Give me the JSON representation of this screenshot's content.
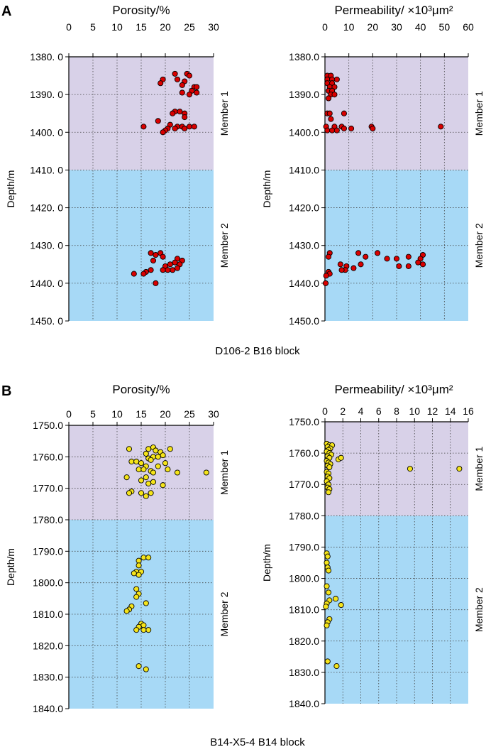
{
  "chart_data": [
    {
      "type": "scatter",
      "panel": "A",
      "title": "Porosity/%",
      "ylabel": "Depth/m",
      "xlim": [
        0,
        30
      ],
      "xticks": [
        "0",
        "5",
        "10",
        "15",
        "20",
        "25",
        "30"
      ],
      "ylim": [
        1380,
        1450
      ],
      "yticks": [
        "1380. 0",
        "1390. 0",
        "1400. 0",
        "1410. 0",
        "1420. 0",
        "1430. 0",
        "1440. 0",
        "1450. 0"
      ],
      "zones": [
        {
          "name": "Member 1",
          "from": 1380,
          "to": 1410,
          "color": "#d8d1e8"
        },
        {
          "name": "Member 2",
          "from": 1410,
          "to": 1450,
          "color": "#a7d9f6"
        }
      ],
      "marker_color": "#d90000",
      "points": [
        [
          22,
          1384.5
        ],
        [
          24.5,
          1384.5
        ],
        [
          25,
          1385
        ],
        [
          19.5,
          1386
        ],
        [
          22.5,
          1386
        ],
        [
          24,
          1386.5
        ],
        [
          19,
          1387
        ],
        [
          23.5,
          1387.5
        ],
        [
          26,
          1388
        ],
        [
          26.5,
          1388
        ],
        [
          25.5,
          1389
        ],
        [
          23.5,
          1389.5
        ],
        [
          26.5,
          1389.5
        ],
        [
          25,
          1390
        ],
        [
          18.5,
          1397
        ],
        [
          22,
          1394.5
        ],
        [
          23,
          1394.5
        ],
        [
          24,
          1395
        ],
        [
          21.5,
          1395
        ],
        [
          24,
          1396
        ],
        [
          21,
          1398
        ],
        [
          22.5,
          1398.5
        ],
        [
          23.5,
          1398.5
        ],
        [
          25,
          1398.5
        ],
        [
          26,
          1398.5
        ],
        [
          15.5,
          1398.5
        ],
        [
          20.5,
          1399
        ],
        [
          22,
          1399
        ],
        [
          24,
          1399
        ],
        [
          20,
          1399.5
        ],
        [
          19.5,
          1400
        ],
        [
          17,
          1432
        ],
        [
          18,
          1432.5
        ],
        [
          19,
          1432
        ],
        [
          19.5,
          1433
        ],
        [
          22.5,
          1433.5
        ],
        [
          23.5,
          1434
        ],
        [
          17.5,
          1434
        ],
        [
          22,
          1434.5
        ],
        [
          23,
          1435
        ],
        [
          21,
          1435
        ],
        [
          20,
          1435.5
        ],
        [
          22.5,
          1436
        ],
        [
          21.5,
          1436.5
        ],
        [
          20.5,
          1436.5
        ],
        [
          19.5,
          1436.5
        ],
        [
          17,
          1436.5
        ],
        [
          16,
          1437
        ],
        [
          15.5,
          1437.5
        ],
        [
          13.5,
          1437.5
        ],
        [
          18,
          1440
        ]
      ]
    },
    {
      "type": "scatter",
      "panel": "A",
      "title": "Permeability/ ×10³μm²",
      "ylabel": "Depth/m",
      "xlim": [
        0,
        60
      ],
      "xticks": [
        "0",
        "10",
        "20",
        "30",
        "40",
        "50",
        "60"
      ],
      "ylim": [
        1380,
        1450
      ],
      "yticks": [
        "1380.0",
        "1390.0",
        "1400.0",
        "1410.0",
        "1420.0",
        "1430.0",
        "1440.0",
        "1450.0"
      ],
      "zones": [
        {
          "name": "Member 1",
          "from": 1380,
          "to": 1410,
          "color": "#d8d1e8"
        },
        {
          "name": "Member 2",
          "from": 1410,
          "to": 1450,
          "color": "#a7d9f6"
        }
      ],
      "marker_color": "#d90000",
      "points": [
        [
          1,
          1385
        ],
        [
          2.5,
          1385
        ],
        [
          1,
          1386
        ],
        [
          3,
          1386
        ],
        [
          5,
          1386
        ],
        [
          1,
          1387
        ],
        [
          3,
          1387
        ],
        [
          2,
          1388
        ],
        [
          4,
          1388
        ],
        [
          1.5,
          1389
        ],
        [
          3,
          1389
        ],
        [
          2.5,
          1390
        ],
        [
          4,
          1390
        ],
        [
          1.5,
          1391
        ],
        [
          1,
          1395
        ],
        [
          2,
          1395
        ],
        [
          8,
          1395
        ],
        [
          2.5,
          1396.5
        ],
        [
          0.5,
          1398.5
        ],
        [
          4,
          1398.5
        ],
        [
          7,
          1398.5
        ],
        [
          19.5,
          1398.5
        ],
        [
          20,
          1399
        ],
        [
          48.5,
          1398.5
        ],
        [
          1,
          1399.5
        ],
        [
          3,
          1399.5
        ],
        [
          5,
          1399.5
        ],
        [
          8,
          1399
        ],
        [
          11,
          1399
        ],
        [
          2,
          1432
        ],
        [
          1.5,
          1433
        ],
        [
          14,
          1432
        ],
        [
          17,
          1433
        ],
        [
          22,
          1432
        ],
        [
          26,
          1433.5
        ],
        [
          30,
          1433.5
        ],
        [
          35,
          1433
        ],
        [
          41,
          1432.5
        ],
        [
          40,
          1433.5
        ],
        [
          39,
          1434.5
        ],
        [
          41,
          1435
        ],
        [
          35,
          1435.5
        ],
        [
          31,
          1435.5
        ],
        [
          6.5,
          1435
        ],
        [
          15,
          1435
        ],
        [
          9,
          1435.5
        ],
        [
          8.5,
          1436.5
        ],
        [
          7,
          1436.5
        ],
        [
          12,
          1436
        ],
        [
          1.5,
          1437
        ],
        [
          2,
          1437.5
        ],
        [
          0.5,
          1438
        ],
        [
          0.3,
          1440
        ]
      ]
    },
    {
      "type": "scatter",
      "panel": "B",
      "title": "Porosity/%",
      "ylabel": "Depth/m",
      "xlim": [
        0,
        30
      ],
      "xticks": [
        "0",
        "5",
        "10",
        "15",
        "20",
        "25",
        "30"
      ],
      "ylim": [
        1750,
        1840
      ],
      "yticks": [
        "1750.0",
        "1760.0",
        "1770.0",
        "1780.0",
        "1790.0",
        "1800.0",
        "1810.0",
        "1820.0",
        "1830.0",
        "1840.0"
      ],
      "zones": [
        {
          "name": "Member 1",
          "from": 1750,
          "to": 1780,
          "color": "#d8d1e8"
        },
        {
          "name": "Member 2",
          "from": 1780,
          "to": 1840,
          "color": "#a7d9f6"
        }
      ],
      "marker_color": "#f5e41a",
      "points": [
        [
          12.5,
          1757.5
        ],
        [
          16.5,
          1757.5
        ],
        [
          17.5,
          1757
        ],
        [
          18,
          1758
        ],
        [
          19,
          1758.5
        ],
        [
          21,
          1757.5
        ],
        [
          16,
          1759
        ],
        [
          19.5,
          1759.5
        ],
        [
          17.5,
          1760
        ],
        [
          18.5,
          1760
        ],
        [
          16.5,
          1760.5
        ],
        [
          17,
          1761
        ],
        [
          13,
          1761.5
        ],
        [
          14,
          1761.5
        ],
        [
          15,
          1762
        ],
        [
          20,
          1762
        ],
        [
          16,
          1763
        ],
        [
          18.5,
          1763
        ],
        [
          14.5,
          1764
        ],
        [
          15.5,
          1764
        ],
        [
          17,
          1764.5
        ],
        [
          20.5,
          1764
        ],
        [
          22.5,
          1765
        ],
        [
          17.5,
          1765
        ],
        [
          28.5,
          1765
        ],
        [
          12,
          1766.5
        ],
        [
          16,
          1766.5
        ],
        [
          15,
          1767.5
        ],
        [
          17.5,
          1768
        ],
        [
          16.5,
          1768.5
        ],
        [
          19.5,
          1769
        ],
        [
          13,
          1771
        ],
        [
          15,
          1771.5
        ],
        [
          17,
          1771.5
        ],
        [
          12.5,
          1771.5
        ],
        [
          16,
          1772.5
        ],
        [
          15.5,
          1792
        ],
        [
          16.5,
          1792
        ],
        [
          14.5,
          1793
        ],
        [
          14.5,
          1794.5
        ],
        [
          14,
          1796.5
        ],
        [
          15,
          1796.5
        ],
        [
          13.5,
          1797
        ],
        [
          14.5,
          1797.5
        ],
        [
          14,
          1802
        ],
        [
          14.5,
          1803.5
        ],
        [
          14,
          1804.5
        ],
        [
          16,
          1806.5
        ],
        [
          13,
          1807.5
        ],
        [
          12.5,
          1808.5
        ],
        [
          12,
          1809
        ],
        [
          15,
          1813
        ],
        [
          15.5,
          1813.5
        ],
        [
          14.5,
          1814
        ],
        [
          14,
          1815
        ],
        [
          16.5,
          1815
        ],
        [
          15.5,
          1815
        ],
        [
          14.5,
          1826.5
        ],
        [
          16,
          1827.5
        ]
      ]
    },
    {
      "type": "scatter",
      "panel": "B",
      "title": "Permeability/ ×10³μm²",
      "ylabel": "Depth/m",
      "xlim": [
        0,
        16
      ],
      "xticks": [
        "0",
        "2",
        "4",
        "6",
        "8",
        "10",
        "12",
        "14",
        "16"
      ],
      "ylim": [
        1750,
        1840
      ],
      "yticks": [
        "1750.0",
        "1760.0",
        "1770.0",
        "1780.0",
        "1790.0",
        "1800.0",
        "1810.0",
        "1820.0",
        "1830.0",
        "1840.0"
      ],
      "zones": [
        {
          "name": "Member 1",
          "from": 1750,
          "to": 1780,
          "color": "#d8d1e8"
        },
        {
          "name": "Member 2",
          "from": 1780,
          "to": 1840,
          "color": "#a7d9f6"
        }
      ],
      "marker_color": "#f5e41a",
      "points": [
        [
          0.2,
          1757
        ],
        [
          0.5,
          1757.5
        ],
        [
          0.8,
          1757.5
        ],
        [
          0.3,
          1758
        ],
        [
          0.6,
          1758.5
        ],
        [
          0.4,
          1759
        ],
        [
          0.2,
          1759.5
        ],
        [
          0.5,
          1760
        ],
        [
          0.7,
          1760.5
        ],
        [
          0.3,
          1761
        ],
        [
          0.5,
          1761.5
        ],
        [
          1.5,
          1762
        ],
        [
          1.8,
          1761.5
        ],
        [
          0.2,
          1762.5
        ],
        [
          0.4,
          1763
        ],
        [
          0.6,
          1763.5
        ],
        [
          0.3,
          1764
        ],
        [
          0.5,
          1764.5
        ],
        [
          9.5,
          1765
        ],
        [
          15,
          1765
        ],
        [
          0.2,
          1766
        ],
        [
          0.4,
          1766.5
        ],
        [
          0.3,
          1767.5
        ],
        [
          0.5,
          1768
        ],
        [
          0.2,
          1769
        ],
        [
          0.4,
          1770
        ],
        [
          0.3,
          1771
        ],
        [
          0.5,
          1771.5
        ],
        [
          0.4,
          1772.5
        ],
        [
          0.2,
          1792
        ],
        [
          0.3,
          1793
        ],
        [
          0.2,
          1795
        ],
        [
          0.3,
          1796.5
        ],
        [
          0.4,
          1797.5
        ],
        [
          0.2,
          1802.5
        ],
        [
          0.4,
          1804.5
        ],
        [
          1.2,
          1806.5
        ],
        [
          1.8,
          1808.5
        ],
        [
          0.5,
          1807
        ],
        [
          0.2,
          1808
        ],
        [
          0.1,
          1809
        ],
        [
          0.5,
          1813
        ],
        [
          0.3,
          1814
        ],
        [
          0.2,
          1815
        ],
        [
          0.3,
          1826.5
        ],
        [
          1.3,
          1828
        ]
      ]
    }
  ],
  "labels": {
    "panel_a": "A",
    "panel_b": "B",
    "a_caption": "D106-2   B16 block",
    "b_caption": "B14-X5-4   B14 block",
    "member1": "Member 1",
    "member2": "Member 2",
    "depth": "Depth/m",
    "porosity": "Porosity/%",
    "permeability": "Permeability/ ×10³μm²"
  }
}
